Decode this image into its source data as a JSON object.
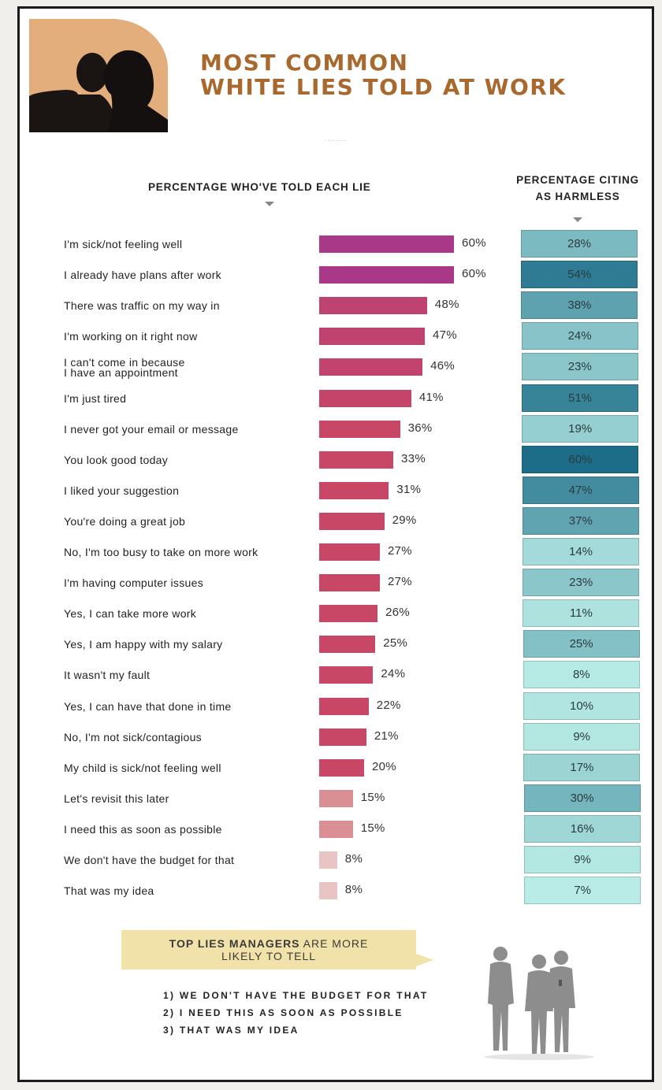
{
  "header": {
    "title_line1": "MOST COMMON",
    "title_line2": "WHITE LIES TOLD AT WORK",
    "dots": "........"
  },
  "colors": {
    "title": "#a9682e",
    "bar_top": "#a8378a",
    "bar_mid": "#c84766",
    "bar_low": "#c96d74",
    "harmless_high": "#1d6d88",
    "harmless_low": "#b9ece6",
    "banner": "#f0e2a8"
  },
  "chart_data": {
    "type": "bar",
    "title": "MOST COMMON WHITE LIES TOLD AT WORK",
    "left_header": "PERCENTAGE WHO'VE TOLD EACH LIE",
    "right_header_line1": "PERCENTAGE CITING",
    "right_header_line2": "AS HARMLESS",
    "unit": "%",
    "xlim": [
      0,
      60
    ],
    "categories": [
      "I'm sick/not feeling well",
      "I already have plans after work",
      "There was traffic on my way in",
      "I'm working on it right now",
      "I can't come in because I have an appointment",
      "I'm just tired",
      "I never got your email or message",
      "You look good today",
      "I liked your suggestion",
      "You're doing a great job",
      "No, I'm too busy to take on more work",
      "I'm having computer issues",
      "Yes, I can take more work",
      "Yes, I am happy with my salary",
      "It wasn't my fault",
      "Yes, I can have that done in time",
      "No, I'm not sick/contagious",
      "My child is sick/not feeling well",
      "Let's revisit this later",
      "I need this as soon as possible",
      "We don't have the budget for that",
      "That was my idea"
    ],
    "series": [
      {
        "name": "Percentage who've told each lie",
        "values": [
          60,
          60,
          48,
          47,
          46,
          41,
          36,
          33,
          31,
          29,
          27,
          27,
          26,
          25,
          24,
          22,
          21,
          20,
          15,
          15,
          8,
          8
        ]
      },
      {
        "name": "Percentage citing as harmless",
        "values": [
          28,
          54,
          38,
          24,
          23,
          51,
          19,
          60,
          47,
          37,
          14,
          23,
          11,
          25,
          8,
          10,
          9,
          17,
          30,
          16,
          9,
          7
        ]
      }
    ]
  },
  "managers": {
    "banner_bold": "TOP LIES MANAGERS",
    "banner_rest": " ARE MORE",
    "banner_line2": "LIKELY TO TELL",
    "items": [
      "1) WE DON'T HAVE THE BUDGET FOR THAT",
      "2) I NEED THIS AS SOON AS POSSIBLE",
      "3) THAT WAS MY IDEA"
    ]
  }
}
